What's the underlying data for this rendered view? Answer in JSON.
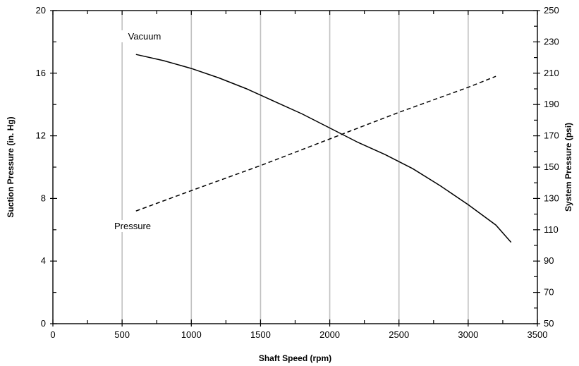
{
  "chart_data": {
    "type": "line",
    "title": "",
    "xlabel": "Shaft Speed (rpm)",
    "ylabel_left": "Suction Pressure (in. Hg)",
    "ylabel_right": "System Pressure (psi)",
    "xlim": [
      0,
      3500
    ],
    "ylim_left": [
      0,
      20
    ],
    "ylim_right": [
      50,
      250
    ],
    "x_ticks": [
      0,
      500,
      1000,
      1500,
      2000,
      2500,
      3000,
      3500
    ],
    "y_ticks_left": [
      0,
      4,
      8,
      12,
      16,
      20
    ],
    "y_ticks_right": [
      50,
      70,
      90,
      110,
      130,
      150,
      170,
      190,
      210,
      230,
      250
    ],
    "grid": "vertical",
    "series": [
      {
        "name": "Vacuum",
        "axis": "left",
        "style": "solid",
        "x": [
          600,
          800,
          1000,
          1200,
          1400,
          1600,
          1800,
          2000,
          2200,
          2400,
          2600,
          2800,
          3000,
          3200,
          3310
        ],
        "y": [
          17.2,
          16.8,
          16.3,
          15.7,
          15.0,
          14.2,
          13.4,
          12.5,
          11.6,
          10.8,
          9.9,
          8.8,
          7.6,
          6.3,
          5.2
        ]
      },
      {
        "name": "Pressure",
        "axis": "right",
        "style": "dashed",
        "x": [
          600,
          1000,
          1500,
          2000,
          2500,
          3000,
          3200
        ],
        "y": [
          122,
          135,
          151,
          168,
          185,
          201,
          208
        ]
      }
    ]
  }
}
